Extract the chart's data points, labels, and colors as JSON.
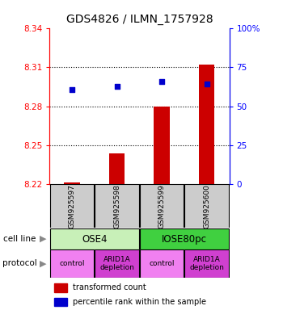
{
  "title": "GDS4826 / ILMN_1757928",
  "samples": [
    "GSM925597",
    "GSM925598",
    "GSM925599",
    "GSM925600"
  ],
  "bar_values": [
    8.2215,
    8.244,
    8.28,
    8.312
  ],
  "bar_base": 8.22,
  "blue_values": [
    8.293,
    8.295,
    8.299,
    8.297
  ],
  "ylim": [
    8.22,
    8.34
  ],
  "ylim_right": [
    0,
    100
  ],
  "yticks_left": [
    8.22,
    8.25,
    8.28,
    8.31,
    8.34
  ],
  "yticks_right": [
    0,
    25,
    50,
    75,
    100
  ],
  "ytick_labels_right": [
    "0",
    "25",
    "50",
    "75",
    "100%"
  ],
  "grid_lines": [
    8.25,
    8.28,
    8.31
  ],
  "cell_line_groups": [
    {
      "label": "OSE4",
      "start": 0,
      "end": 2,
      "color": "#c8f0b8"
    },
    {
      "label": "IOSE80pc",
      "start": 2,
      "end": 4,
      "color": "#40d040"
    }
  ],
  "protocol_groups": [
    {
      "label": "control",
      "start": 0,
      "end": 1,
      "color": "#f080f0"
    },
    {
      "label": "ARID1A\ndepletion",
      "start": 1,
      "end": 2,
      "color": "#d040d0"
    },
    {
      "label": "control",
      "start": 2,
      "end": 3,
      "color": "#f080f0"
    },
    {
      "label": "ARID1A\ndepletion",
      "start": 3,
      "end": 4,
      "color": "#d040d0"
    }
  ],
  "bar_color": "#cc0000",
  "blue_color": "#0000cc",
  "sample_box_color": "#cccccc",
  "legend_bar_label": "transformed count",
  "legend_blue_label": "percentile rank within the sample"
}
